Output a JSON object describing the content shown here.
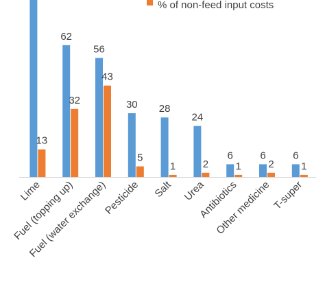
{
  "chart_data": {
    "type": "bar",
    "categories": [
      "Lime",
      "Fuel (topping up)",
      "Fuel (water exchange)",
      "Pesticide",
      "Salt",
      "Urea",
      "Antibiotics",
      "Other medicine",
      "T-super"
    ],
    "series": [
      {
        "values": [
          null,
          62,
          56,
          30,
          28,
          24,
          6,
          6,
          6
        ],
        "color": "#5B9BD5"
      },
      {
        "name": "% of non-feed input costs",
        "values": [
          13,
          32,
          43,
          5,
          1,
          2,
          1,
          2,
          1
        ],
        "color": "#ED7D31"
      }
    ],
    "value_labels": [
      [
        "",
        "62",
        "56",
        "30",
        "28",
        "24",
        "6",
        "6",
        "6"
      ],
      [
        "13",
        "32",
        "43",
        "5",
        "1",
        "2",
        "1",
        "2",
        "1"
      ]
    ],
    "note": "The first blue bar (Lime) extends beyond the top edge of the visible area; its value label is not visible.",
    "legend": {
      "position": "top-right",
      "entries": [
        "% of non-feed input costs"
      ]
    },
    "ylim": [
      0,
      100
    ],
    "grid": false
  }
}
